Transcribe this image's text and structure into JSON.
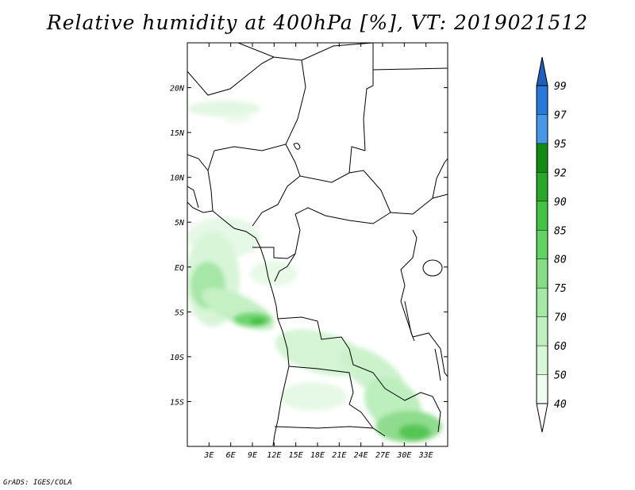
{
  "title": "Relative humidity at 400hPa [%], VT: 2019021512",
  "credit": "GrADS: IGES/COLA",
  "map": {
    "projection": "lat-lon",
    "lon_range": [
      0,
      36
    ],
    "lat_range": [
      -20,
      25
    ],
    "lon_ticks": [
      {
        "value": 3,
        "label": "3E"
      },
      {
        "value": 6,
        "label": "6E"
      },
      {
        "value": 9,
        "label": "9E"
      },
      {
        "value": 12,
        "label": "12E"
      },
      {
        "value": 15,
        "label": "15E"
      },
      {
        "value": 18,
        "label": "18E"
      },
      {
        "value": 21,
        "label": "21E"
      },
      {
        "value": 24,
        "label": "24E"
      },
      {
        "value": 27,
        "label": "27E"
      },
      {
        "value": 30,
        "label": "30E"
      },
      {
        "value": 33,
        "label": "33E"
      }
    ],
    "lat_ticks": [
      {
        "value": 20,
        "label": "20N"
      },
      {
        "value": 15,
        "label": "15N"
      },
      {
        "value": 10,
        "label": "10N"
      },
      {
        "value": 5,
        "label": "5N"
      },
      {
        "value": 0,
        "label": "EQ"
      },
      {
        "value": -5,
        "label": "5S"
      },
      {
        "value": -10,
        "label": "10S"
      },
      {
        "value": -15,
        "label": "15S"
      }
    ]
  },
  "colorbar": {
    "levels": [
      {
        "label": "40",
        "color": "#f0fcf0"
      },
      {
        "label": "50",
        "color": "#d8f6d8"
      },
      {
        "label": "60",
        "color": "#bff0bf"
      },
      {
        "label": "70",
        "color": "#a3e8a3"
      },
      {
        "label": "75",
        "color": "#85de85"
      },
      {
        "label": "80",
        "color": "#63d263"
      },
      {
        "label": "85",
        "color": "#45c245"
      },
      {
        "label": "90",
        "color": "#2aa62a"
      },
      {
        "label": "92",
        "color": "#138a13"
      },
      {
        "label": "95",
        "color": "#4a97e8"
      },
      {
        "label": "97",
        "color": "#2a78d8"
      },
      {
        "label": "99",
        "color": "#1f5fc0"
      }
    ],
    "below_color": "#ffffff",
    "above_color": "#1f5fc0"
  }
}
